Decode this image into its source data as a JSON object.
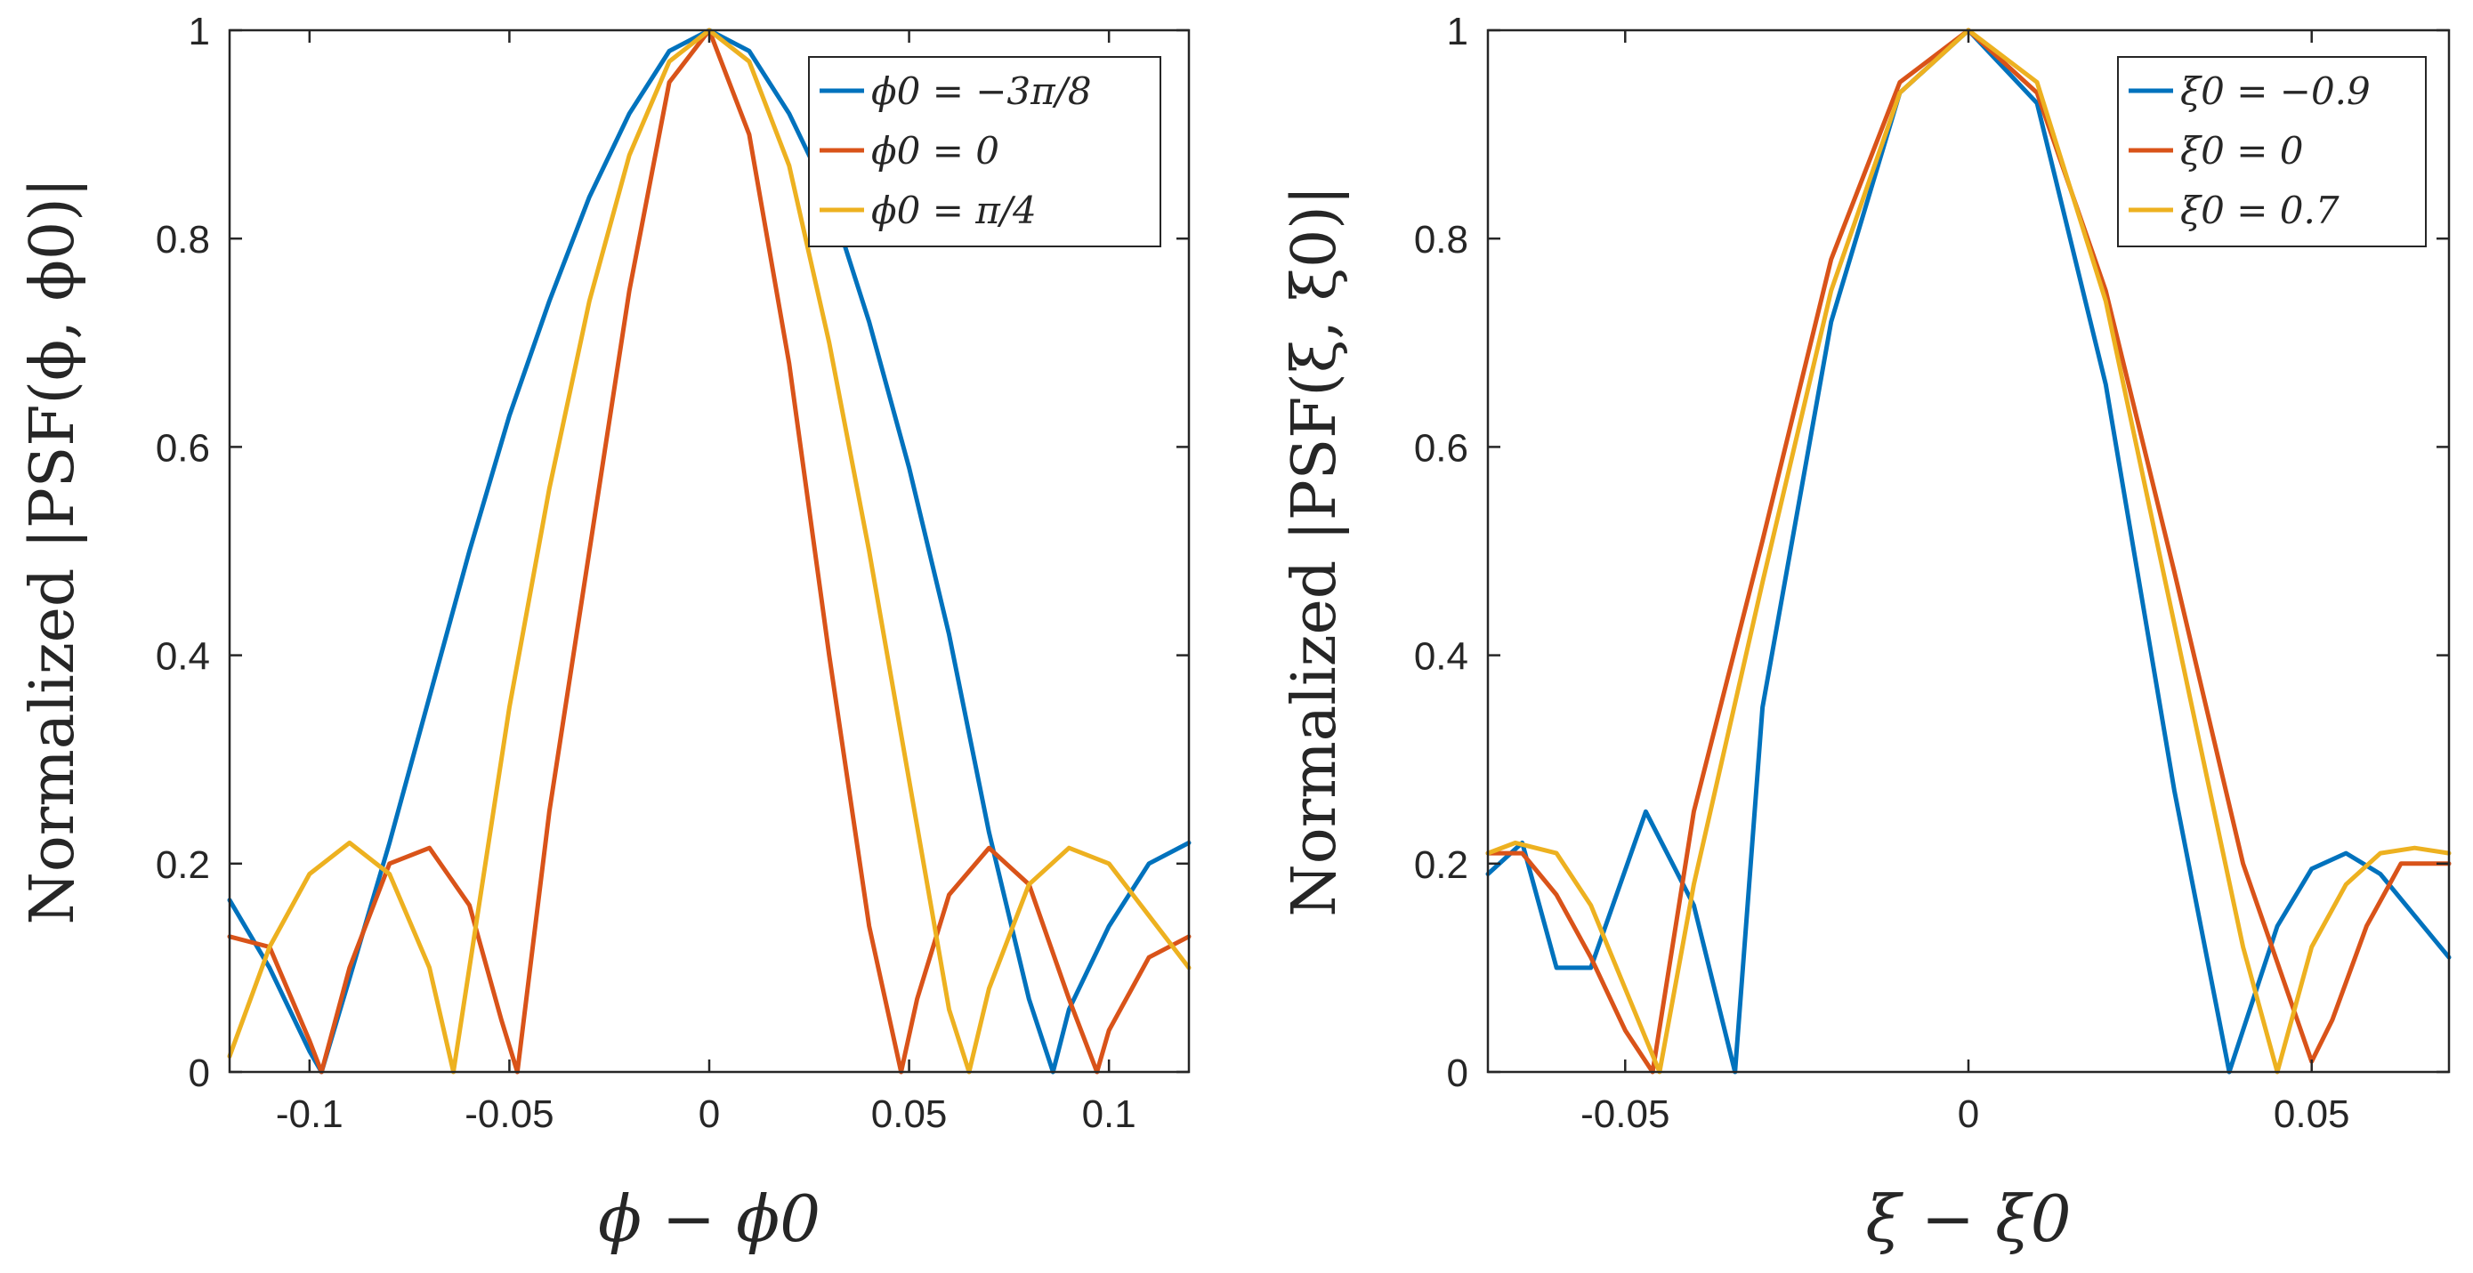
{
  "chart_data": [
    {
      "type": "line",
      "xlabel": "ϕ − ϕ0",
      "ylabel": "Normalized |PSF(ϕ, ϕ0)|",
      "xlim": [
        -0.12,
        0.12
      ],
      "ylim": [
        0,
        1
      ],
      "xticks": [
        -0.1,
        -0.05,
        0,
        0.05,
        0.1
      ],
      "xtick_labels": [
        "-0.1",
        "-0.05",
        "0",
        "0.05",
        "0.1"
      ],
      "yticks": [
        0,
        0.2,
        0.4,
        0.6,
        0.8,
        1
      ],
      "ytick_labels": [
        "0",
        "0.2",
        "0.4",
        "0.6",
        "0.8",
        "1"
      ],
      "grid": false,
      "legend_position": "top-right",
      "series": [
        {
          "name": "ϕ0 = −3π/8",
          "color": "#0072BD",
          "x": [
            -0.12,
            -0.11,
            -0.1,
            -0.097,
            -0.09,
            -0.08,
            -0.07,
            -0.06,
            -0.05,
            -0.04,
            -0.03,
            -0.02,
            -0.01,
            0,
            0.01,
            0.02,
            0.03,
            0.04,
            0.05,
            0.06,
            0.07,
            0.08,
            0.086,
            0.09,
            0.1,
            0.11,
            0.12
          ],
          "y": [
            0.165,
            0.1,
            0.02,
            0.0,
            0.09,
            0.22,
            0.36,
            0.5,
            0.63,
            0.74,
            0.84,
            0.92,
            0.98,
            1.0,
            0.98,
            0.92,
            0.84,
            0.72,
            0.58,
            0.42,
            0.23,
            0.07,
            0.0,
            0.06,
            0.14,
            0.2,
            0.22
          ]
        },
        {
          "name": "ϕ0 = 0",
          "color": "#D95319",
          "x": [
            -0.12,
            -0.11,
            -0.1,
            -0.097,
            -0.09,
            -0.08,
            -0.07,
            -0.06,
            -0.052,
            -0.048,
            -0.04,
            -0.03,
            -0.02,
            -0.01,
            0,
            0.01,
            0.02,
            0.03,
            0.04,
            0.048,
            0.052,
            0.06,
            0.07,
            0.08,
            0.09,
            0.097,
            0.1,
            0.11,
            0.12
          ],
          "y": [
            0.13,
            0.12,
            0.03,
            0.0,
            0.1,
            0.2,
            0.215,
            0.16,
            0.05,
            0.0,
            0.25,
            0.5,
            0.75,
            0.95,
            1.0,
            0.9,
            0.68,
            0.4,
            0.14,
            0.0,
            0.07,
            0.17,
            0.215,
            0.18,
            0.07,
            0.0,
            0.04,
            0.11,
            0.13
          ]
        },
        {
          "name": "ϕ0 = π/4",
          "color": "#EDB120",
          "x": [
            -0.12,
            -0.11,
            -0.1,
            -0.09,
            -0.08,
            -0.07,
            -0.064,
            -0.06,
            -0.05,
            -0.04,
            -0.03,
            -0.02,
            -0.01,
            0,
            0.01,
            0.02,
            0.03,
            0.04,
            0.05,
            0.06,
            0.065,
            0.07,
            0.08,
            0.09,
            0.1,
            0.11,
            0.12
          ],
          "y": [
            0.015,
            0.12,
            0.19,
            0.22,
            0.19,
            0.1,
            0.0,
            0.1,
            0.35,
            0.56,
            0.74,
            0.88,
            0.97,
            1.0,
            0.97,
            0.87,
            0.7,
            0.5,
            0.28,
            0.06,
            0.0,
            0.08,
            0.18,
            0.215,
            0.2,
            0.15,
            0.1
          ]
        }
      ]
    },
    {
      "type": "line",
      "xlabel": "ξ − ξ0",
      "ylabel": "Normalized |PSF(ξ, ξ0)|",
      "xlim": [
        -0.07,
        0.07
      ],
      "ylim": [
        0,
        1
      ],
      "xticks": [
        -0.05,
        0,
        0.05
      ],
      "xtick_labels": [
        "-0.05",
        "0",
        "0.05"
      ],
      "yticks": [
        0,
        0.2,
        0.4,
        0.6,
        0.8,
        1
      ],
      "ytick_labels": [
        "0",
        "0.2",
        "0.4",
        "0.6",
        "0.8",
        "1"
      ],
      "grid": false,
      "legend_position": "top-right",
      "series": [
        {
          "name": "ξ0 = −0.9",
          "color": "#0072BD",
          "x": [
            -0.07,
            -0.065,
            -0.06,
            -0.055,
            -0.047,
            -0.04,
            -0.034,
            -0.03,
            -0.02,
            -0.01,
            0,
            0.01,
            0.02,
            0.03,
            0.038,
            0.045,
            0.05,
            0.055,
            0.06,
            0.065,
            0.07
          ],
          "y": [
            0.19,
            0.22,
            0.1,
            0.1,
            0.25,
            0.16,
            0.0,
            0.35,
            0.72,
            0.94,
            1.0,
            0.93,
            0.66,
            0.27,
            0.0,
            0.14,
            0.195,
            0.21,
            0.19,
            0.15,
            0.11
          ]
        },
        {
          "name": "ξ0 = 0",
          "color": "#D95319",
          "x": [
            -0.07,
            -0.065,
            -0.06,
            -0.055,
            -0.05,
            -0.046,
            -0.04,
            -0.03,
            -0.02,
            -0.01,
            0,
            0.01,
            0.02,
            0.03,
            0.04,
            0.05,
            0.053,
            0.058,
            0.063,
            0.07
          ],
          "y": [
            0.21,
            0.21,
            0.17,
            0.11,
            0.04,
            0.0,
            0.25,
            0.51,
            0.78,
            0.95,
            1.0,
            0.94,
            0.75,
            0.48,
            0.2,
            0.01,
            0.05,
            0.14,
            0.2,
            0.2
          ]
        },
        {
          "name": "ξ0 = 0.7",
          "color": "#EDB120",
          "x": [
            -0.07,
            -0.066,
            -0.06,
            -0.055,
            -0.05,
            -0.045,
            -0.04,
            -0.03,
            -0.02,
            -0.01,
            0,
            0.01,
            0.02,
            0.03,
            0.04,
            0.045,
            0.05,
            0.055,
            0.06,
            0.065,
            0.07
          ],
          "y": [
            0.21,
            0.22,
            0.21,
            0.16,
            0.08,
            0.0,
            0.18,
            0.47,
            0.75,
            0.94,
            1.0,
            0.95,
            0.74,
            0.43,
            0.12,
            0.0,
            0.12,
            0.18,
            0.21,
            0.215,
            0.21
          ]
        }
      ]
    }
  ]
}
